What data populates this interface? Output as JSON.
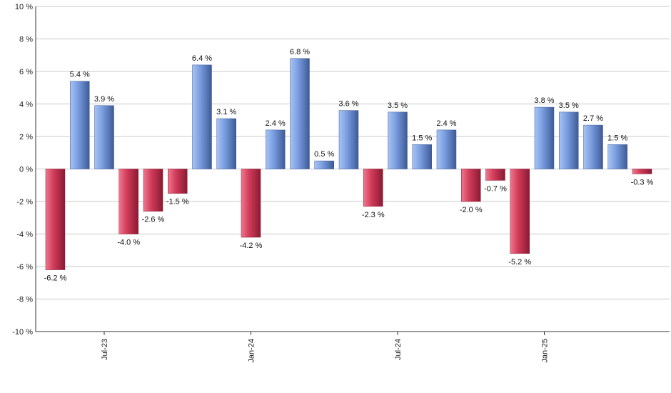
{
  "chart_data": {
    "type": "bar",
    "title": "",
    "xlabel": "",
    "ylabel": "",
    "ylim": [
      -10,
      10
    ],
    "ytick_step": 2,
    "ytick_suffix": " %",
    "grid": true,
    "legend": "none",
    "values": [
      -6.2,
      5.4,
      3.9,
      -4.0,
      -2.6,
      -1.5,
      6.4,
      3.1,
      -4.2,
      2.4,
      6.8,
      0.5,
      3.6,
      -2.3,
      3.5,
      1.5,
      2.4,
      -2.0,
      -0.7,
      -5.2,
      3.8,
      3.5,
      2.7,
      1.5,
      -0.3
    ],
    "labels": [
      "-6.2 %",
      "5.4 %",
      "3.9 %",
      "-4.0 %",
      "-2.6 %",
      "-1.5 %",
      "6.4 %",
      "3.1 %",
      "-4.2 %",
      "2.4 %",
      "6.8 %",
      "0.5 %",
      "3.6 %",
      "-2.3 %",
      "3.5 %",
      "1.5 %",
      "2.4 %",
      "-2.0 %",
      "-0.7 %",
      "-5.2 %",
      "3.8 %",
      "3.5 %",
      "2.7 %",
      "1.5 %",
      "-0.3 %"
    ],
    "x_ticks": [
      {
        "index": 2,
        "label": "Jul-23"
      },
      {
        "index": 8,
        "label": "Jan-24"
      },
      {
        "index": 14,
        "label": "Jul-24"
      },
      {
        "index": 20,
        "label": "Jan-25"
      }
    ],
    "colors": {
      "positive_light": "#a8c4f4",
      "positive_mid": "#7a9ee0",
      "positive_dark": "#3e5a96",
      "negative_light": "#f0788e",
      "negative_mid": "#d23c5a",
      "negative_dark": "#8a1a32",
      "grid": "#c8c8c8",
      "axis": "#333333"
    }
  }
}
